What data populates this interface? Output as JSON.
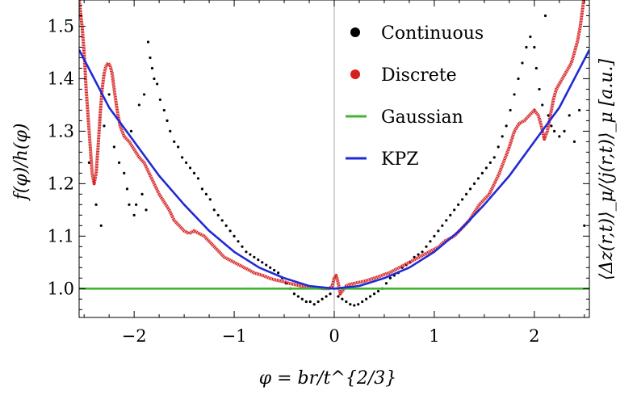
{
  "chart_data": {
    "type": "scatter",
    "xlabel": "φ = br/t^{2/3}",
    "ylabel": "f(φ)/h(φ)",
    "y2label": "⟨Δz(r,t)⟩_μ/⟨j(r,t)⟩_μ [a.u.]",
    "xlim": [
      -2.55,
      2.55
    ],
    "ylim": [
      0.945,
      1.55
    ],
    "x_ticks": [
      -2,
      -1,
      0,
      1,
      2
    ],
    "x_tick_labels": [
      "−2",
      "−1",
      "0",
      "1",
      "2"
    ],
    "y_ticks": [
      1.0,
      1.1,
      1.2,
      1.3,
      1.4,
      1.5
    ],
    "y_tick_labels": [
      "1.0",
      "1.1",
      "1.2",
      "1.3",
      "1.4",
      "1.5"
    ],
    "legend_position": "top-right",
    "grid": false,
    "vertical_reference_x": 0,
    "series": [
      {
        "name": "Continuous",
        "kind": "scatter",
        "color": "#000000",
        "points": [
          [
            -2.45,
            1.24
          ],
          [
            -2.38,
            1.16
          ],
          [
            -2.33,
            1.12
          ],
          [
            -2.3,
            1.31
          ],
          [
            -2.25,
            1.37
          ],
          [
            -2.2,
            1.27
          ],
          [
            -2.15,
            1.24
          ],
          [
            -2.1,
            1.22
          ],
          [
            -2.07,
            1.19
          ],
          [
            -2.05,
            1.16
          ],
          [
            -2.03,
            1.3
          ],
          [
            -2.0,
            1.14
          ],
          [
            -1.98,
            1.16
          ],
          [
            -1.95,
            1.35
          ],
          [
            -1.92,
            1.18
          ],
          [
            -1.9,
            1.37
          ],
          [
            -1.88,
            1.15
          ],
          [
            -1.86,
            1.47
          ],
          [
            -1.84,
            1.44
          ],
          [
            -1.82,
            1.42
          ],
          [
            -1.8,
            1.4
          ],
          [
            -1.77,
            1.39
          ],
          [
            -1.74,
            1.36
          ],
          [
            -1.7,
            1.34
          ],
          [
            -1.67,
            1.32
          ],
          [
            -1.64,
            1.3
          ],
          [
            -1.6,
            1.28
          ],
          [
            -1.56,
            1.27
          ],
          [
            -1.52,
            1.25
          ],
          [
            -1.48,
            1.24
          ],
          [
            -1.44,
            1.23
          ],
          [
            -1.4,
            1.22
          ],
          [
            -1.36,
            1.21
          ],
          [
            -1.32,
            1.19
          ],
          [
            -1.28,
            1.18
          ],
          [
            -1.24,
            1.17
          ],
          [
            -1.2,
            1.15
          ],
          [
            -1.16,
            1.14
          ],
          [
            -1.12,
            1.13
          ],
          [
            -1.08,
            1.12
          ],
          [
            -1.04,
            1.11
          ],
          [
            -1.0,
            1.1
          ],
          [
            -0.96,
            1.09
          ],
          [
            -0.92,
            1.08
          ],
          [
            -0.88,
            1.07
          ],
          [
            -0.84,
            1.065
          ],
          [
            -0.8,
            1.06
          ],
          [
            -0.76,
            1.055
          ],
          [
            -0.72,
            1.05
          ],
          [
            -0.68,
            1.045
          ],
          [
            -0.64,
            1.04
          ],
          [
            -0.6,
            1.035
          ],
          [
            -0.56,
            1.03
          ],
          [
            -0.52,
            1.02
          ],
          [
            -0.48,
            1.01
          ],
          [
            -0.44,
            1.0
          ],
          [
            -0.4,
            0.99
          ],
          [
            -0.36,
            0.985
          ],
          [
            -0.32,
            0.98
          ],
          [
            -0.28,
            0.975
          ],
          [
            -0.24,
            0.975
          ],
          [
            -0.2,
            0.97
          ],
          [
            -0.16,
            0.975
          ],
          [
            -0.12,
            0.98
          ],
          [
            -0.08,
            0.985
          ],
          [
            -0.04,
            0.99
          ],
          [
            0.04,
            0.985
          ],
          [
            0.08,
            0.98
          ],
          [
            0.12,
            0.975
          ],
          [
            0.16,
            0.97
          ],
          [
            0.2,
            0.968
          ],
          [
            0.24,
            0.97
          ],
          [
            0.28,
            0.975
          ],
          [
            0.32,
            0.98
          ],
          [
            0.36,
            0.985
          ],
          [
            0.4,
            0.99
          ],
          [
            0.44,
            0.995
          ],
          [
            0.48,
            1.0
          ],
          [
            0.52,
            1.01
          ],
          [
            0.56,
            1.02
          ],
          [
            0.6,
            1.025
          ],
          [
            0.64,
            1.03
          ],
          [
            0.68,
            1.04
          ],
          [
            0.72,
            1.045
          ],
          [
            0.76,
            1.05
          ],
          [
            0.8,
            1.06
          ],
          [
            0.84,
            1.065
          ],
          [
            0.88,
            1.07
          ],
          [
            0.92,
            1.08
          ],
          [
            0.96,
            1.09
          ],
          [
            1.0,
            1.1
          ],
          [
            1.04,
            1.11
          ],
          [
            1.08,
            1.12
          ],
          [
            1.12,
            1.13
          ],
          [
            1.16,
            1.14
          ],
          [
            1.2,
            1.15
          ],
          [
            1.24,
            1.16
          ],
          [
            1.28,
            1.17
          ],
          [
            1.32,
            1.18
          ],
          [
            1.36,
            1.19
          ],
          [
            1.4,
            1.2
          ],
          [
            1.44,
            1.21
          ],
          [
            1.48,
            1.22
          ],
          [
            1.52,
            1.23
          ],
          [
            1.56,
            1.24
          ],
          [
            1.6,
            1.25
          ],
          [
            1.64,
            1.27
          ],
          [
            1.68,
            1.29
          ],
          [
            1.72,
            1.31
          ],
          [
            1.76,
            1.34
          ],
          [
            1.8,
            1.37
          ],
          [
            1.84,
            1.4
          ],
          [
            1.88,
            1.43
          ],
          [
            1.92,
            1.46
          ],
          [
            1.96,
            1.48
          ],
          [
            2.0,
            1.46
          ],
          [
            2.02,
            1.42
          ],
          [
            2.05,
            1.38
          ],
          [
            2.08,
            1.35
          ],
          [
            2.11,
            1.52
          ],
          [
            2.14,
            1.33
          ],
          [
            2.17,
            1.31
          ],
          [
            2.2,
            1.3
          ],
          [
            2.25,
            1.29
          ],
          [
            2.3,
            1.3
          ],
          [
            2.35,
            1.33
          ],
          [
            2.4,
            1.28
          ],
          [
            2.45,
            1.34
          ],
          [
            2.5,
            1.12
          ]
        ]
      },
      {
        "name": "Discrete",
        "kind": "dense-line",
        "color": "#d62020",
        "x": [
          -2.55,
          -2.52,
          -2.5,
          -2.48,
          -2.45,
          -2.42,
          -2.4,
          -2.38,
          -2.36,
          -2.34,
          -2.32,
          -2.3,
          -2.28,
          -2.26,
          -2.24,
          -2.22,
          -2.2,
          -2.17,
          -2.14,
          -2.1,
          -2.05,
          -2.0,
          -1.95,
          -1.9,
          -1.85,
          -1.8,
          -1.75,
          -1.7,
          -1.65,
          -1.6,
          -1.55,
          -1.5,
          -1.45,
          -1.4,
          -1.35,
          -1.3,
          -1.25,
          -1.2,
          -1.15,
          -1.1,
          -1.05,
          -1.0,
          -0.95,
          -0.9,
          -0.85,
          -0.8,
          -0.75,
          -0.7,
          -0.65,
          -0.6,
          -0.55,
          -0.5,
          -0.45,
          -0.4,
          -0.35,
          -0.3,
          -0.25,
          -0.2,
          -0.15,
          -0.1,
          -0.05,
          -0.02,
          0.0,
          0.02,
          0.04,
          0.06,
          0.08,
          0.1,
          0.12,
          0.15,
          0.2,
          0.25,
          0.3,
          0.35,
          0.4,
          0.45,
          0.5,
          0.55,
          0.6,
          0.65,
          0.7,
          0.75,
          0.8,
          0.85,
          0.9,
          0.95,
          1.0,
          1.05,
          1.1,
          1.15,
          1.2,
          1.25,
          1.3,
          1.35,
          1.4,
          1.45,
          1.5,
          1.55,
          1.6,
          1.65,
          1.7,
          1.75,
          1.8,
          1.85,
          1.9,
          1.95,
          2.0,
          2.04,
          2.07,
          2.1,
          2.13,
          2.16,
          2.19,
          2.22,
          2.25,
          2.28,
          2.31,
          2.34,
          2.37,
          2.4,
          2.43,
          2.46,
          2.48,
          2.5,
          2.52
        ],
        "y": [
          1.55,
          1.5,
          1.45,
          1.38,
          1.3,
          1.22,
          1.2,
          1.22,
          1.27,
          1.33,
          1.38,
          1.41,
          1.425,
          1.43,
          1.425,
          1.41,
          1.38,
          1.34,
          1.31,
          1.29,
          1.28,
          1.265,
          1.25,
          1.24,
          1.22,
          1.2,
          1.18,
          1.165,
          1.15,
          1.13,
          1.12,
          1.11,
          1.105,
          1.11,
          1.105,
          1.1,
          1.09,
          1.08,
          1.07,
          1.06,
          1.055,
          1.05,
          1.045,
          1.04,
          1.035,
          1.03,
          1.027,
          1.024,
          1.02,
          1.017,
          1.015,
          1.013,
          1.01,
          1.008,
          1.006,
          1.004,
          1.003,
          1.002,
          1.001,
          1.0,
          1.0,
          1.005,
          1.02,
          1.025,
          1.01,
          0.99,
          0.995,
          1.0,
          1.005,
          1.008,
          1.01,
          1.012,
          1.014,
          1.017,
          1.02,
          1.023,
          1.027,
          1.03,
          1.035,
          1.04,
          1.045,
          1.05,
          1.055,
          1.06,
          1.065,
          1.07,
          1.075,
          1.08,
          1.09,
          1.095,
          1.1,
          1.11,
          1.12,
          1.13,
          1.145,
          1.16,
          1.17,
          1.18,
          1.2,
          1.22,
          1.245,
          1.27,
          1.3,
          1.315,
          1.32,
          1.33,
          1.34,
          1.33,
          1.31,
          1.285,
          1.3,
          1.33,
          1.36,
          1.38,
          1.39,
          1.4,
          1.41,
          1.42,
          1.43,
          1.45,
          1.47,
          1.5,
          1.53,
          1.56,
          1.6
        ]
      },
      {
        "name": "Gaussian",
        "kind": "line",
        "color": "#44b333",
        "x": [
          -2.55,
          2.55
        ],
        "y": [
          1.0,
          1.0
        ]
      },
      {
        "name": "KPZ",
        "kind": "line",
        "color": "#1f2ad6",
        "x": [
          -2.55,
          -2.25,
          -2.0,
          -1.75,
          -1.5,
          -1.25,
          -1.0,
          -0.75,
          -0.5,
          -0.25,
          0.0,
          0.25,
          0.5,
          0.75,
          1.0,
          1.25,
          1.5,
          1.75,
          2.0,
          2.25,
          2.55
        ],
        "y": [
          1.455,
          1.345,
          1.28,
          1.215,
          1.16,
          1.11,
          1.07,
          1.04,
          1.02,
          1.005,
          1.0,
          1.005,
          1.02,
          1.04,
          1.07,
          1.11,
          1.16,
          1.215,
          1.28,
          1.345,
          1.455
        ]
      }
    ]
  }
}
